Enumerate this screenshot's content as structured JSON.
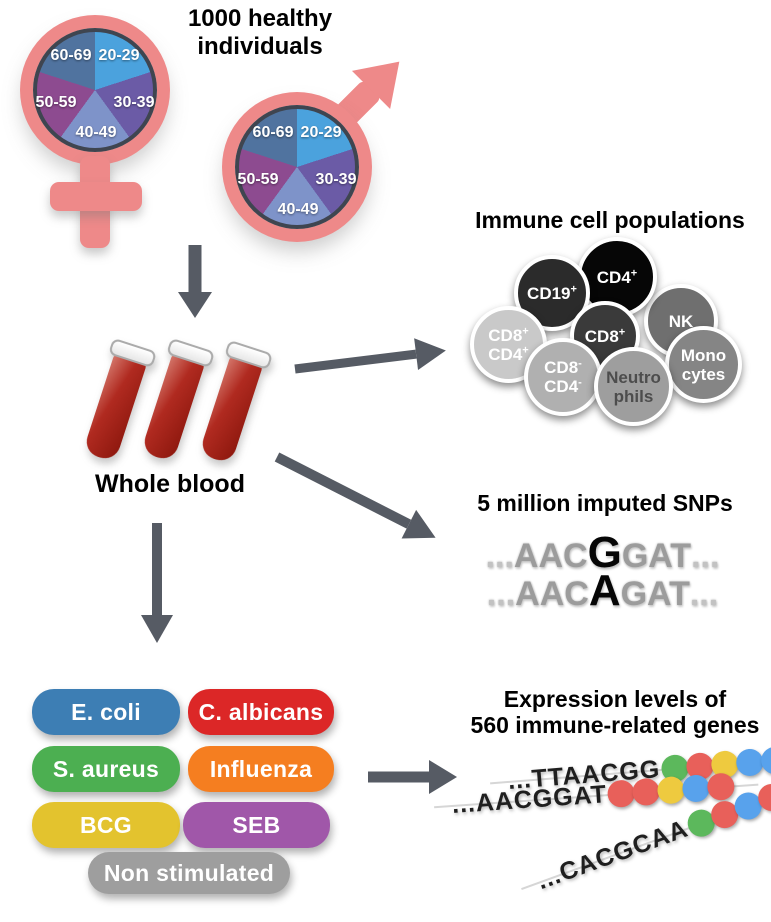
{
  "header": {
    "title_line1": "1000 healthy",
    "title_line2": "individuals"
  },
  "demographics": {
    "symbols": [
      "female",
      "male"
    ],
    "age_groups": [
      {
        "label": "20-29",
        "color": "#4ba2dd",
        "pos": "tr"
      },
      {
        "label": "30-39",
        "color": "#6b5ba6",
        "pos": "r"
      },
      {
        "label": "40-49",
        "color": "#7e93c9",
        "pos": "b"
      },
      {
        "label": "50-59",
        "color": "#8d4b90",
        "pos": "l"
      },
      {
        "label": "60-69",
        "color": "#50739f",
        "pos": "tl"
      }
    ]
  },
  "whole_blood": {
    "label": "Whole blood",
    "tube_count": 3
  },
  "immune_cells": {
    "title": "Immune cell populations",
    "cells": [
      {
        "lines": [
          [
            "CD19",
            "+"
          ]
        ],
        "bg": "#2b2b2b",
        "fg": "#ffffff"
      },
      {
        "lines": [
          [
            "CD4",
            "+"
          ]
        ],
        "bg": "#060606",
        "fg": "#ffffff"
      },
      {
        "lines": [
          [
            "NK",
            ""
          ]
        ],
        "bg": "#6f6f6f",
        "fg": "#ffffff"
      },
      {
        "lines": [
          [
            "CD8",
            "+"
          ],
          [
            "CD4",
            "+"
          ]
        ],
        "bg": "#c9c9c9",
        "fg": "#ffffff"
      },
      {
        "lines": [
          [
            "CD8",
            "+"
          ]
        ],
        "bg": "#3a3a3a",
        "fg": "#ffffff"
      },
      {
        "lines": [
          [
            "Mono",
            ""
          ],
          [
            "cytes",
            ""
          ]
        ],
        "bg": "#858585",
        "fg": "#ffffff"
      },
      {
        "lines": [
          [
            "CD8",
            "-"
          ],
          [
            "CD4",
            "-"
          ]
        ],
        "bg": "#b0b0b0",
        "fg": "#ffffff"
      },
      {
        "lines": [
          [
            "Neutro",
            ""
          ],
          [
            "phils",
            ""
          ]
        ],
        "bg": "#9e9e9e",
        "fg": "#4d4d4d"
      }
    ]
  },
  "snps": {
    "title": "5 million imputed SNPs",
    "sequences": [
      {
        "prefix": "...",
        "before": "AAC",
        "variant": "G",
        "after": "GAT",
        "suffix": "..."
      },
      {
        "prefix": "...",
        "before": "AAC",
        "variant": "A",
        "after": "GAT",
        "suffix": "..."
      }
    ]
  },
  "stimuli": {
    "items": [
      {
        "label": "E. coli",
        "color": "#3d7eb4"
      },
      {
        "label": "C. albicans",
        "color": "#dc2727"
      },
      {
        "label": "S. aureus",
        "color": "#4caf51"
      },
      {
        "label": "Influenza",
        "color": "#f57e20"
      },
      {
        "label": "BCG",
        "color": "#e3c32e"
      },
      {
        "label": "SEB",
        "color": "#a057a9"
      },
      {
        "label": "Non stimulated",
        "color": "#9e9e9e"
      }
    ]
  },
  "expression": {
    "title_line1": "Expression levels of",
    "title_line2": "560 immune-related genes",
    "strands": [
      {
        "sequence": "...TTAACGG",
        "dots": [
          "green",
          "red",
          "yellow",
          "blue",
          "blue"
        ]
      },
      {
        "sequence": "...AACGGAT",
        "dots": [
          "red",
          "red",
          "yellow",
          "blue",
          "red"
        ]
      },
      {
        "sequence": "...CACGCAA",
        "dots": [
          "green",
          "red",
          "blue",
          "red",
          "red"
        ]
      }
    ],
    "dot_colors": {
      "green": "#5cb85c",
      "red": "#e8605a",
      "yellow": "#eeca3f",
      "blue": "#58a2ec"
    }
  },
  "palette": {
    "symbol_pink": "#ee8989",
    "arrow_gray": "#565b64",
    "pie_outline": "#3f4550",
    "blood_red": "#b02a20",
    "background": "#ffffff"
  }
}
